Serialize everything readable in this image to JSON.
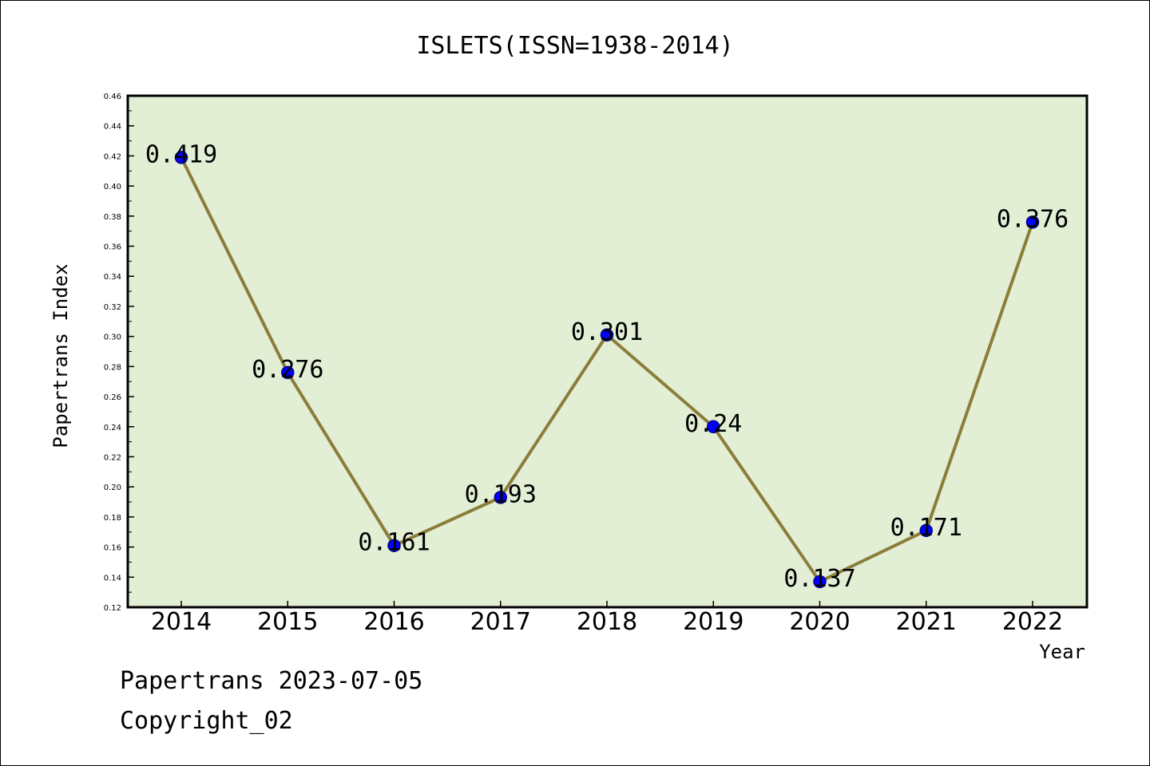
{
  "chart_data": {
    "type": "line",
    "title": "ISLETS(ISSN=1938-2014)",
    "xlabel": "Year",
    "ylabel": "Papertrans Index",
    "categories": [
      "2014",
      "2015",
      "2016",
      "2017",
      "2018",
      "2019",
      "2020",
      "2021",
      "2022"
    ],
    "series": [
      {
        "values": [
          0.419,
          0.276,
          0.161,
          0.193,
          0.301,
          0.24,
          0.137,
          0.171,
          0.376
        ],
        "labels": [
          "0.419",
          "0.276",
          "0.161",
          "0.193",
          "0.301",
          "0.24",
          "0.137",
          "0.171",
          "0.376"
        ]
      }
    ],
    "ylim": [
      0.12,
      0.46
    ],
    "yticks": [
      "0.12",
      "0.14",
      "0.16",
      "0.18",
      "0.20",
      "0.22",
      "0.24",
      "0.26",
      "0.28",
      "0.30",
      "0.32",
      "0.34",
      "0.36",
      "0.38",
      "0.40",
      "0.42",
      "0.44",
      "0.46"
    ],
    "grid": false,
    "colors": {
      "plot_background": "#e2efd5",
      "line": "#8b7d3a",
      "marker": "#0000ff",
      "marker_edge": "#00008b"
    }
  },
  "footer": {
    "line1": "Papertrans 2023-07-05",
    "line2": "Copyright_02"
  }
}
